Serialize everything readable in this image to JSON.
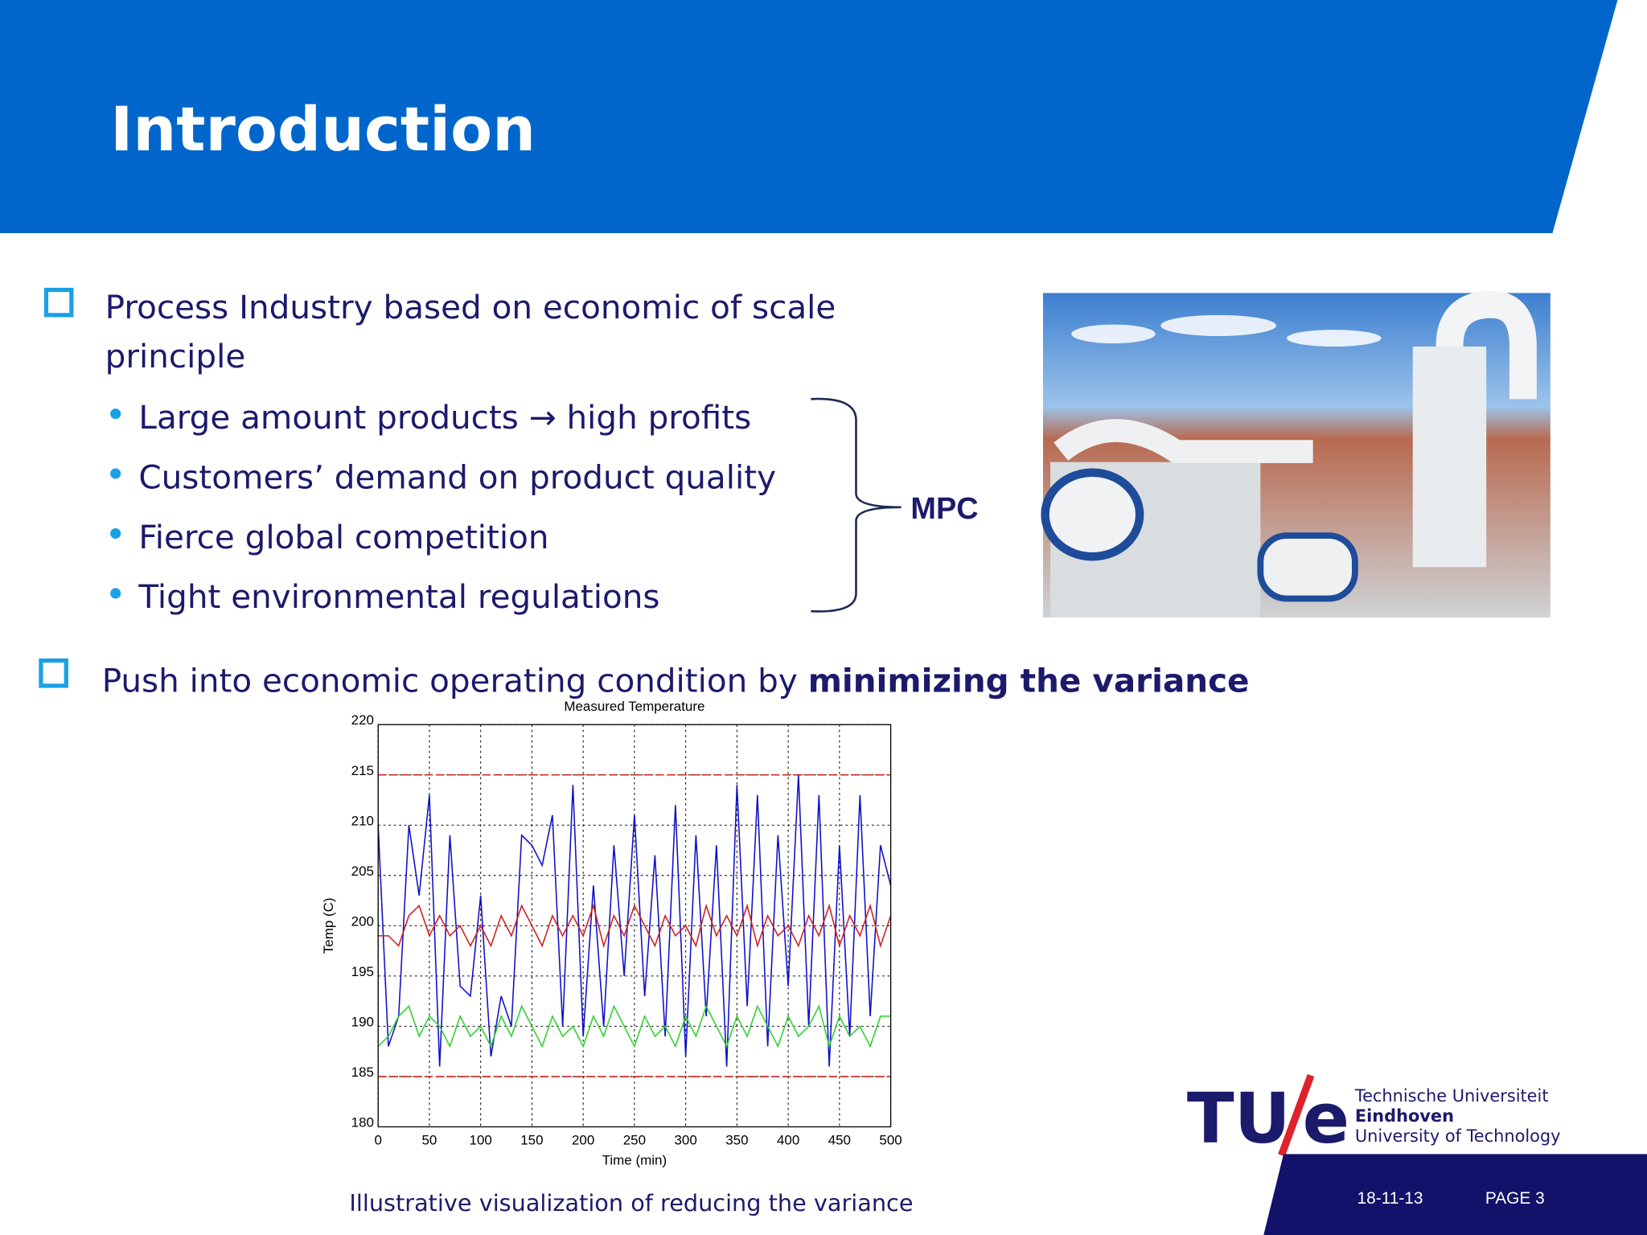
{
  "header": {
    "title": "Introduction"
  },
  "bullets": [
    {
      "text": "Process Industry based on economic of scale principle",
      "sub": [
        "Large amount products → high profits",
        "Customers’ demand on product quality",
        "Fierce global competition",
        "Tight environmental regulations"
      ]
    },
    {
      "text": "Push into economic operating condition by",
      "emphasis": "minimizing the variance"
    }
  ],
  "brace_label": "MPC",
  "chart_data": {
    "type": "line",
    "title": "Measured Temperature",
    "x_label": "Time (min)",
    "y_label": "Temp (C)",
    "x": [
      0,
      10,
      20,
      30,
      40,
      50,
      60,
      70,
      80,
      90,
      100,
      110,
      120,
      130,
      140,
      150,
      160,
      170,
      180,
      190,
      200,
      210,
      220,
      230,
      240,
      250,
      260,
      270,
      280,
      290,
      300,
      310,
      320,
      330,
      340,
      350,
      360,
      370,
      380,
      390,
      400,
      410,
      420,
      430,
      440,
      450,
      460,
      470,
      480,
      490,
      500
    ],
    "series": [
      {
        "color": "#1010c8",
        "values": [
          210,
          188,
          191,
          210,
          203,
          213,
          186,
          209,
          194,
          193,
          203,
          187,
          193,
          190,
          209,
          208,
          206,
          211,
          190,
          214,
          189,
          204,
          190,
          208,
          195,
          211,
          193,
          207,
          189,
          212,
          187,
          209,
          191,
          208,
          186,
          214,
          192,
          213,
          188,
          209,
          194,
          215,
          190,
          213,
          186,
          208,
          189,
          213,
          191,
          208,
          204
        ]
      },
      {
        "color": "#d02020",
        "values": [
          199,
          199,
          198,
          201,
          202,
          199,
          201,
          199,
          200,
          198,
          200,
          198,
          201,
          199,
          202,
          200,
          198,
          201,
          199,
          201,
          199,
          202,
          198,
          201,
          199,
          202,
          200,
          198,
          201,
          199,
          200,
          198,
          202,
          199,
          201,
          199,
          202,
          198,
          201,
          199,
          200,
          198,
          201,
          199,
          202,
          198,
          201,
          199,
          202,
          198,
          201
        ]
      },
      {
        "color": "#30d030",
        "values": [
          188,
          189,
          191,
          192,
          189,
          191,
          190,
          188,
          191,
          189,
          190,
          188,
          191,
          189,
          192,
          190,
          188,
          191,
          189,
          190,
          188,
          191,
          189,
          192,
          190,
          188,
          191,
          189,
          190,
          188,
          191,
          189,
          192,
          190,
          188,
          191,
          189,
          192,
          190,
          188,
          191,
          189,
          190,
          192,
          188,
          191,
          189,
          190,
          188,
          191,
          191
        ]
      }
    ],
    "limit_lines": [
      215,
      185
    ],
    "limit_color": "#d02020",
    "xlim": [
      0,
      500
    ],
    "xticks": [
      0,
      50,
      100,
      150,
      200,
      250,
      300,
      350,
      400,
      450,
      500
    ],
    "ylim": [
      180,
      220
    ],
    "yticks": [
      180,
      185,
      190,
      195,
      200,
      205,
      210,
      215,
      220
    ],
    "grid": true
  },
  "caption": "Illustrative visualization of reducing the variance",
  "logo": {
    "mark_left": "TU",
    "mark_right": "e",
    "line1": "Technische Universiteit",
    "line2": "Eindhoven",
    "line3": "University of Technology"
  },
  "footer": {
    "date": "18-11-13",
    "page": "PAGE 3"
  }
}
